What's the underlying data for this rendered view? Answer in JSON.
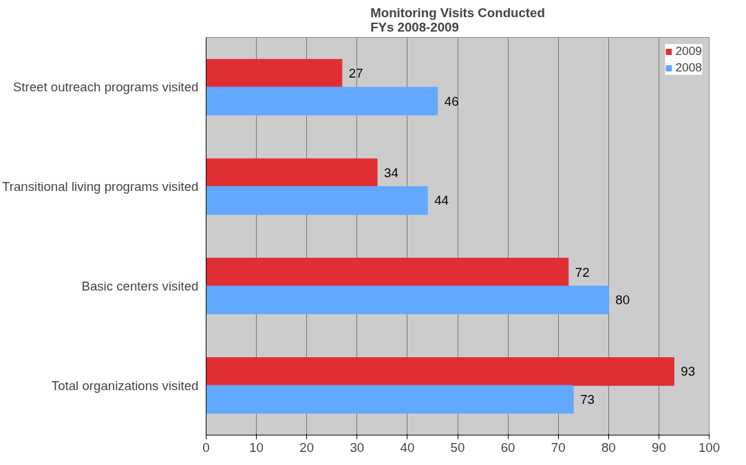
{
  "chart_data": {
    "type": "bar",
    "orientation": "horizontal",
    "title": "Monitoring Visits Conducted\nFYs 2008-2009",
    "categories": [
      "Street outreach programs visited",
      "Transitional living programs visited",
      "Basic centers visited",
      "Total organizations visited"
    ],
    "series": [
      {
        "name": "2009",
        "color": "#e02e35",
        "values": [
          27,
          34,
          72,
          93
        ]
      },
      {
        "name": "2008",
        "color": "#62a8ff",
        "values": [
          46,
          44,
          80,
          73
        ]
      }
    ],
    "xlim": [
      0,
      100
    ],
    "xticks": [
      0,
      10,
      20,
      30,
      40,
      50,
      60,
      70,
      80,
      90,
      100
    ],
    "grid": "x",
    "legend": "top right",
    "data_labels": true
  }
}
